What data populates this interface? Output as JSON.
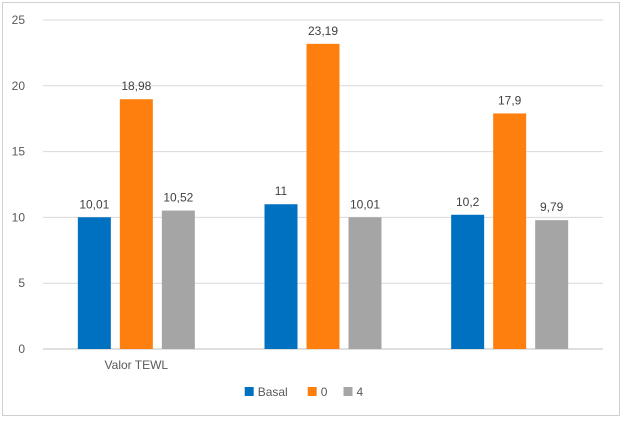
{
  "chart_data": {
    "type": "bar",
    "title": "",
    "xlabel": "",
    "ylabel": "",
    "ylim": [
      0,
      25
    ],
    "yticks": [
      0,
      5,
      10,
      15,
      20,
      25
    ],
    "grid": true,
    "legend_position": "bottom",
    "categories": [
      "Valor TEWL",
      "",
      ""
    ],
    "series": [
      {
        "name": "Basal",
        "color": "#0070C0",
        "values": [
          10.01,
          11,
          10.2
        ],
        "labels": [
          "10,01",
          "11",
          "10,2"
        ]
      },
      {
        "name": "0",
        "color": "#FF7F0E",
        "values": [
          18.98,
          23.19,
          17.9
        ],
        "labels": [
          "18,98",
          "23,19",
          "17,9"
        ]
      },
      {
        "name": "4",
        "color": "#A5A5A5",
        "values": [
          10.52,
          10.01,
          9.79
        ],
        "labels": [
          "10,52",
          "10,01",
          "9,79"
        ]
      }
    ]
  }
}
